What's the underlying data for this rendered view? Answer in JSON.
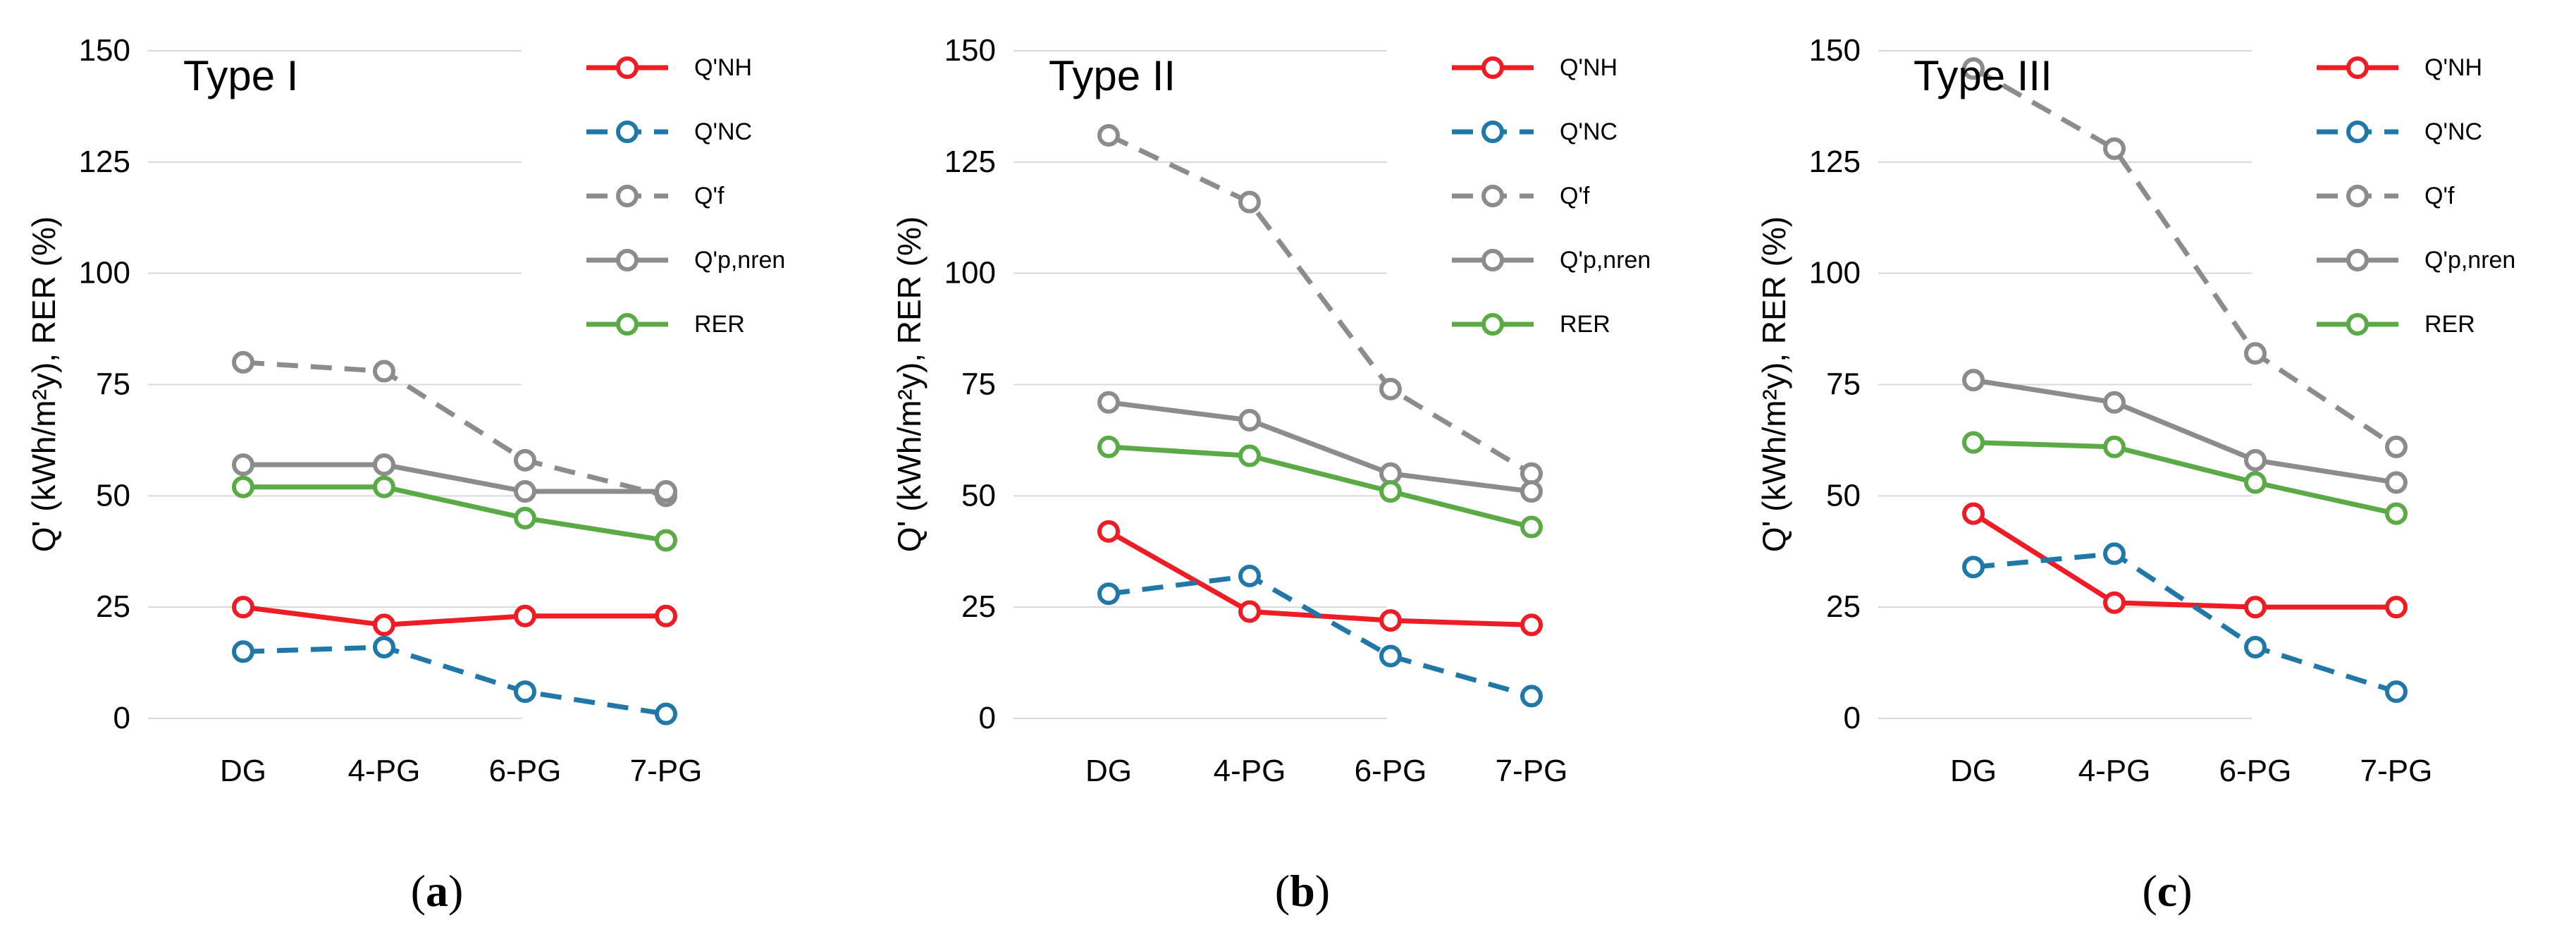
{
  "chart_data": [
    {
      "type": "line",
      "panel_label": "a",
      "title": "Type I",
      "ylabel": "Q' (kWh/m²y),  RER (%)",
      "xlabel": "",
      "categories": [
        "DG",
        "4-PG",
        "6-PG",
        "7-PG"
      ],
      "ylim": [
        0,
        150
      ],
      "yticks": [
        0,
        25,
        50,
        75,
        100,
        125,
        150
      ],
      "grid": true,
      "legend_position": "top-right",
      "series": [
        {
          "name": "Q'NH",
          "values": [
            25,
            21,
            23,
            23
          ],
          "color": "#ee1c24",
          "dash": "solid"
        },
        {
          "name": "Q'NC",
          "values": [
            15,
            16,
            6,
            1
          ],
          "color": "#1f78a8",
          "dash": "dashed"
        },
        {
          "name": "Q'f",
          "values": [
            80,
            78,
            58,
            50
          ],
          "color": "#8c8c8c",
          "dash": "dashed"
        },
        {
          "name": "Q'p,nren",
          "values": [
            57,
            57,
            51,
            51
          ],
          "color": "#8c8c8c",
          "dash": "solid"
        },
        {
          "name": "RER",
          "values": [
            52,
            52,
            45,
            40
          ],
          "color": "#5aaa46",
          "dash": "solid"
        }
      ]
    },
    {
      "type": "line",
      "panel_label": "b",
      "title": "Type II",
      "ylabel": "Q' (kWh/m²y),  RER (%)",
      "xlabel": "",
      "categories": [
        "DG",
        "4-PG",
        "6-PG",
        "7-PG"
      ],
      "ylim": [
        0,
        150
      ],
      "yticks": [
        0,
        25,
        50,
        75,
        100,
        125,
        150
      ],
      "grid": true,
      "legend_position": "top-right",
      "series": [
        {
          "name": "Q'NH",
          "values": [
            42,
            24,
            22,
            21
          ],
          "color": "#ee1c24",
          "dash": "solid"
        },
        {
          "name": "Q'NC",
          "values": [
            28,
            32,
            14,
            5
          ],
          "color": "#1f78a8",
          "dash": "dashed"
        },
        {
          "name": "Q'f",
          "values": [
            131,
            116,
            74,
            55
          ],
          "color": "#8c8c8c",
          "dash": "dashed"
        },
        {
          "name": "Q'p,nren",
          "values": [
            71,
            67,
            55,
            51
          ],
          "color": "#8c8c8c",
          "dash": "solid"
        },
        {
          "name": "RER",
          "values": [
            61,
            59,
            51,
            43
          ],
          "color": "#5aaa46",
          "dash": "solid"
        }
      ]
    },
    {
      "type": "line",
      "panel_label": "c",
      "title": "Type III",
      "ylabel": "Q' (kWh/m²y),  RER (%)",
      "xlabel": "",
      "categories": [
        "DG",
        "4-PG",
        "6-PG",
        "7-PG"
      ],
      "ylim": [
        0,
        150
      ],
      "yticks": [
        0,
        25,
        50,
        75,
        100,
        125,
        150
      ],
      "grid": true,
      "legend_position": "top-right",
      "series": [
        {
          "name": "Q'NH",
          "values": [
            46,
            26,
            25,
            25
          ],
          "color": "#ee1c24",
          "dash": "solid"
        },
        {
          "name": "Q'NC",
          "values": [
            34,
            37,
            16,
            6
          ],
          "color": "#1f78a8",
          "dash": "dashed"
        },
        {
          "name": "Q'f",
          "values": [
            146,
            128,
            82,
            61
          ],
          "color": "#8c8c8c",
          "dash": "dashed"
        },
        {
          "name": "Q'p,nren",
          "values": [
            76,
            71,
            58,
            53
          ],
          "color": "#8c8c8c",
          "dash": "solid"
        },
        {
          "name": "RER",
          "values": [
            62,
            61,
            53,
            46
          ],
          "color": "#5aaa46",
          "dash": "solid"
        }
      ]
    }
  ]
}
